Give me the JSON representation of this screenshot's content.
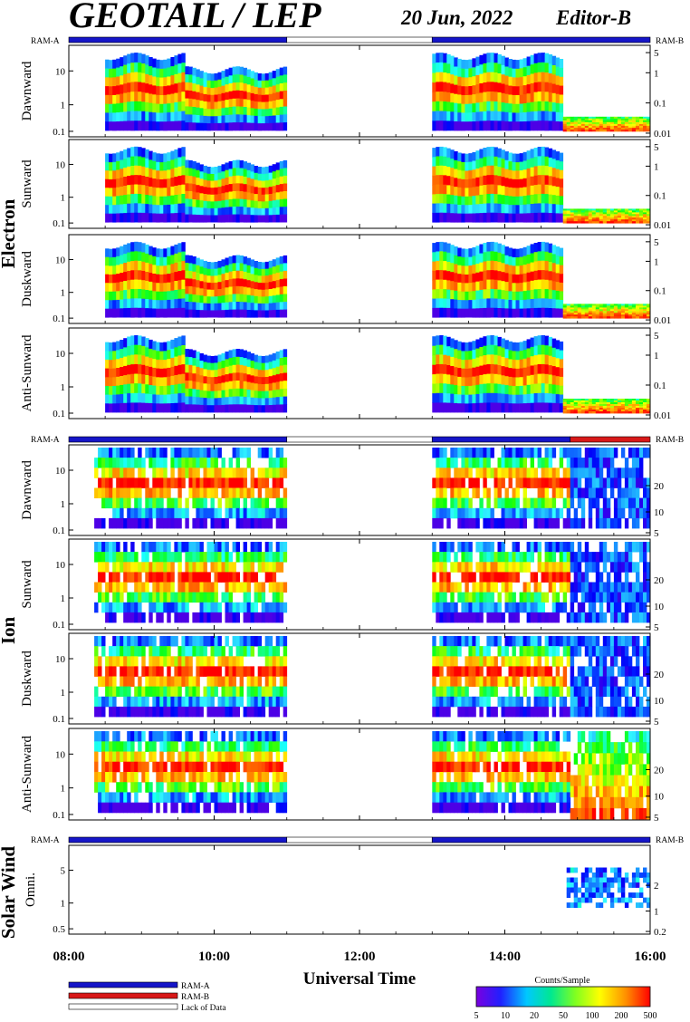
{
  "header": {
    "title": "GEOTAIL / LEP",
    "date": "20 Jun, 2022",
    "editor": "Editor-B"
  },
  "ram_labels": {
    "left": "RAM-A",
    "right": "RAM-B"
  },
  "groups": {
    "electron": "Electron",
    "ion": "Ion",
    "solar_wind": "Solar Wind"
  },
  "axes": {
    "x_label": "Universal Time",
    "x_ticks": [
      "08:00",
      "10:00",
      "12:00",
      "14:00",
      "16:00"
    ]
  },
  "legend": {
    "items": [
      {
        "label": "RAM-A",
        "color": "#1515c8"
      },
      {
        "label": "RAM-B",
        "color": "#d81818"
      },
      {
        "label": "Lack of Data",
        "color": "#ffffff"
      }
    ]
  },
  "colorbar": {
    "title": "Counts/Sample",
    "ticks": [
      "5",
      "10",
      "20",
      "50",
      "100",
      "200",
      "500"
    ],
    "colors": [
      "#7a00e0",
      "#2020ff",
      "#00c8ff",
      "#00e890",
      "#80ff20",
      "#ffff00",
      "#ff9000",
      "#ff0000"
    ]
  },
  "chart_data": {
    "type": "heatmap",
    "x_range_hours": [
      8,
      16
    ],
    "data_gap_hours": [
      11.0,
      13.0
    ],
    "ram_bars": {
      "top": [
        {
          "start": 8.0,
          "end": 11.0,
          "mode": "RAM-A"
        },
        {
          "start": 11.0,
          "end": 13.0,
          "mode": "Lack of Data"
        },
        {
          "start": 13.0,
          "end": 16.0,
          "mode": "RAM-A"
        }
      ],
      "middle": [
        {
          "start": 8.0,
          "end": 11.0,
          "mode": "RAM-A"
        },
        {
          "start": 11.0,
          "end": 13.0,
          "mode": "Lack of Data"
        },
        {
          "start": 13.0,
          "end": 14.9,
          "mode": "RAM-A"
        },
        {
          "start": 14.9,
          "end": 16.0,
          "mode": "RAM-B"
        }
      ],
      "bottom": [
        {
          "start": 8.0,
          "end": 11.0,
          "mode": "RAM-A"
        },
        {
          "start": 11.0,
          "end": 13.0,
          "mode": "Lack of Data"
        },
        {
          "start": 13.0,
          "end": 16.0,
          "mode": "RAM-A"
        }
      ]
    },
    "panels": [
      {
        "group": "Electron",
        "label": "Dawnward",
        "left_ticks": [
          "10",
          "1",
          "0.1"
        ],
        "right_ticks": [
          "5",
          "1",
          "0.1",
          "0.01"
        ]
      },
      {
        "group": "Electron",
        "label": "Sunward",
        "left_ticks": [
          "10",
          "1",
          "0.1"
        ],
        "right_ticks": [
          "5",
          "1",
          "0.1",
          "0.01"
        ]
      },
      {
        "group": "Electron",
        "label": "Duskward",
        "left_ticks": [
          "10",
          "1",
          "0.1"
        ],
        "right_ticks": [
          "5",
          "1",
          "0.1",
          "0.01"
        ]
      },
      {
        "group": "Electron",
        "label": "Anti-Sunward",
        "left_ticks": [
          "10",
          "1",
          "0.1"
        ],
        "right_ticks": [
          "5",
          "1",
          "0.1",
          "0.01"
        ]
      },
      {
        "group": "Ion",
        "label": "Dawnward",
        "left_ticks": [
          "10",
          "1",
          "0.1"
        ],
        "right_ticks": [
          "20",
          "10",
          "5"
        ]
      },
      {
        "group": "Ion",
        "label": "Sunward",
        "left_ticks": [
          "10",
          "1",
          "0.1"
        ],
        "right_ticks": [
          "20",
          "10",
          "5"
        ]
      },
      {
        "group": "Ion",
        "label": "Duskward",
        "left_ticks": [
          "10",
          "1",
          "0.1"
        ],
        "right_ticks": [
          "20",
          "10",
          "5"
        ]
      },
      {
        "group": "Ion",
        "label": "Anti-Sunward",
        "left_ticks": [
          "10",
          "1",
          "0.1"
        ],
        "right_ticks": [
          "20",
          "10",
          "5"
        ]
      },
      {
        "group": "Solar Wind",
        "label": "Omni.",
        "left_ticks": [
          "5",
          "1",
          "0.5"
        ],
        "right_ticks": [
          "2",
          "1",
          "0.2"
        ]
      }
    ]
  }
}
